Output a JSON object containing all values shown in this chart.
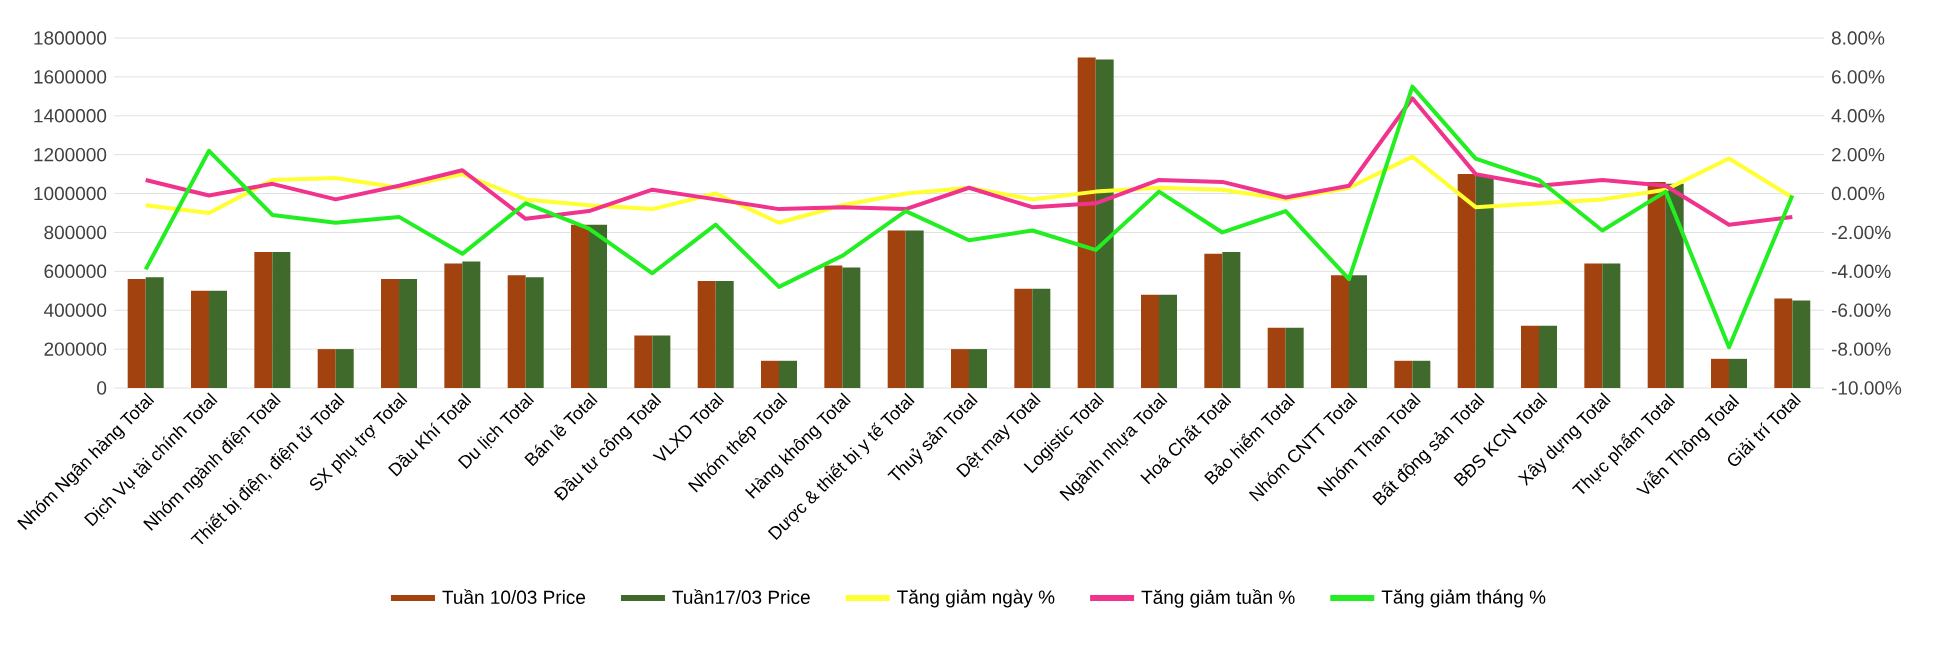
{
  "chart_data": {
    "type": "bar",
    "categories": [
      "Nhóm Ngân hàng Total",
      "Dịch Vụ tài chính Total",
      "Nhóm ngành điện Total",
      "Thiết bị điện, điện tử Total",
      "SX phụ trợ Total",
      "Dầu Khí Total",
      "Du lịch Total",
      "Bán lẻ Total",
      "Đầu tư công Total",
      "VLXD Total",
      "Nhóm thép Total",
      "Hàng không Total",
      "Dược & thiết bị y tế Total",
      "Thuỷ sản Total",
      "Dệt may Total",
      "Logistic Total",
      "Ngành nhựa Total",
      "Hoá Chất Total",
      "Bảo hiểm Total",
      "Nhóm CNTT Total",
      "Nhóm Than Total",
      "Bất động sản Total",
      "BĐS KCN Total",
      "Xây dựng Total",
      "Thực phẩm Total",
      "Viễn Thông Total",
      "Giải trí Total"
    ],
    "series": [
      {
        "name": "Tuần 10/03 Price",
        "color": "#a1420f",
        "values": [
          560000,
          500000,
          700000,
          200000,
          560000,
          640000,
          580000,
          840000,
          270000,
          550000,
          140000,
          630000,
          810000,
          200000,
          510000,
          1700000,
          480000,
          690000,
          310000,
          580000,
          140000,
          1100000,
          320000,
          640000,
          1060000,
          150000,
          460000
        ]
      },
      {
        "name": "Tuần17/03 Price",
        "color": "#3f6a2b",
        "values": [
          570000,
          500000,
          700000,
          200000,
          560000,
          650000,
          570000,
          840000,
          270000,
          550000,
          140000,
          620000,
          810000,
          200000,
          510000,
          1690000,
          480000,
          700000,
          310000,
          580000,
          140000,
          1090000,
          320000,
          640000,
          1050000,
          150000,
          450000
        ]
      },
      {
        "name": "Tăng giảm ngày %",
        "color": "#ffff33",
        "type": "line",
        "axis": "y2",
        "values": [
          -0.6,
          -1.0,
          0.7,
          0.8,
          0.3,
          1.0,
          -0.3,
          -0.6,
          -0.8,
          0,
          -1.5,
          -0.6,
          0,
          0.3,
          -0.3,
          0.1,
          0.3,
          0.2,
          -0.3,
          0.3,
          1.9,
          -0.7,
          -0.5,
          -0.3,
          0.2,
          1.8,
          -0.2
        ]
      },
      {
        "name": "Tăng giảm tuần %",
        "color": "#f0338c",
        "type": "line",
        "axis": "y2",
        "values": [
          0.7,
          -0.1,
          0.5,
          -0.3,
          0.4,
          1.2,
          -1.3,
          -0.9,
          0.2,
          -0.3,
          -0.8,
          -0.7,
          -0.8,
          0.3,
          -0.7,
          -0.5,
          0.7,
          0.6,
          -0.2,
          0.4,
          4.9,
          1.0,
          0.4,
          0.7,
          0.4,
          -1.6,
          -1.2
        ]
      },
      {
        "name": "Tăng giảm tháng %",
        "color": "#22ee22",
        "type": "line",
        "axis": "y2",
        "values": [
          -3.9,
          2.2,
          -1.1,
          -1.5,
          -1.2,
          -3.1,
          -0.5,
          -1.8,
          -4.1,
          -1.6,
          -4.8,
          -3.2,
          -0.9,
          -2.4,
          -1.9,
          -2.9,
          0.1,
          -2.0,
          -0.9,
          -4.4,
          5.5,
          1.8,
          0.7,
          -1.9,
          0.1,
          -7.9,
          -0.1
        ]
      }
    ],
    "ylim": [
      0,
      1800000
    ],
    "yticks": [
      0,
      200000,
      400000,
      600000,
      800000,
      1000000,
      1200000,
      1400000,
      1600000,
      1800000
    ],
    "y2lim": [
      -10,
      8
    ],
    "y2ticks": [
      {
        "value": -10,
        "label": "-10.00%"
      },
      {
        "value": -8,
        "label": "-8.00%"
      },
      {
        "value": -6,
        "label": "-6.00%"
      },
      {
        "value": -4,
        "label": "-4.00%"
      },
      {
        "value": -2,
        "label": "-2.00%"
      },
      {
        "value": 0,
        "label": "0.00%"
      },
      {
        "value": 2,
        "label": "2.00%"
      },
      {
        "value": 4,
        "label": "4.00%"
      },
      {
        "value": 6,
        "label": "6.00%"
      },
      {
        "value": 8,
        "label": "8.00%"
      }
    ],
    "grid": "y",
    "legend": "bottom",
    "line_style": "solid",
    "marker": "none"
  }
}
